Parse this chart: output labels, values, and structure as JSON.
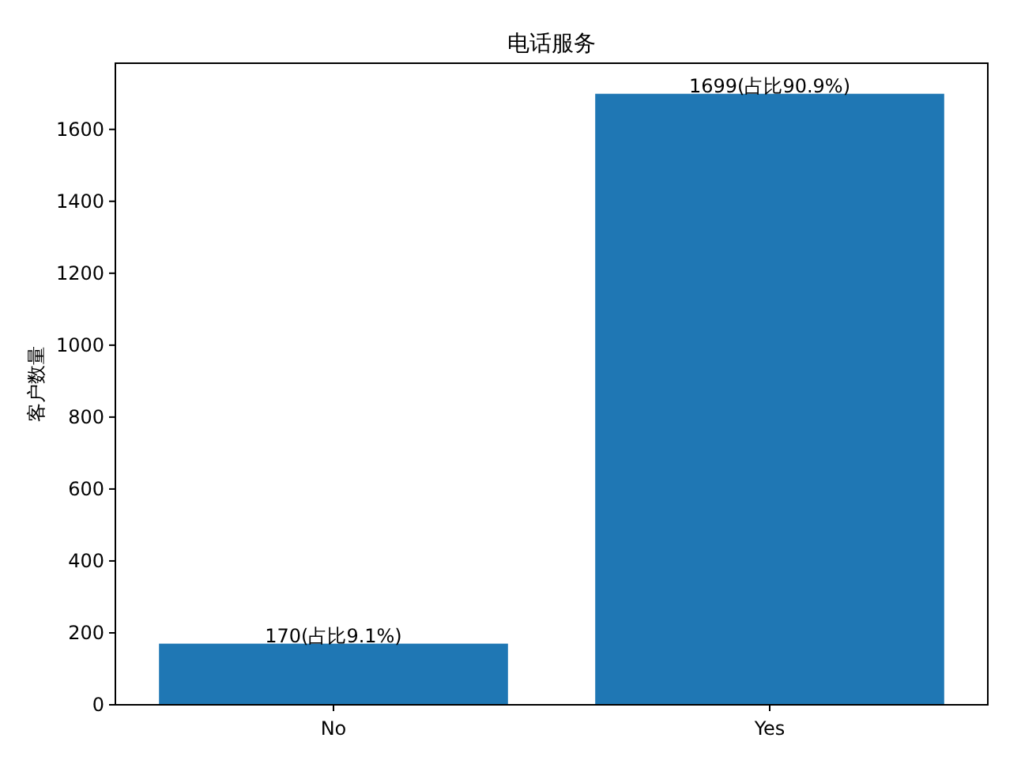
{
  "chart_data": {
    "type": "bar",
    "title": "电话服务",
    "ylabel": "客户数量",
    "categories": [
      "No",
      "Yes"
    ],
    "values": [
      170,
      1699
    ],
    "color": "#1f77b4",
    "value_labels": [
      "170(占比9.1%)",
      "1699(占比90.9%)"
    ],
    "ylim": [
      0,
      1784
    ],
    "yticks": [
      0,
      200,
      400,
      600,
      800,
      1000,
      1200,
      1400,
      1600
    ]
  }
}
